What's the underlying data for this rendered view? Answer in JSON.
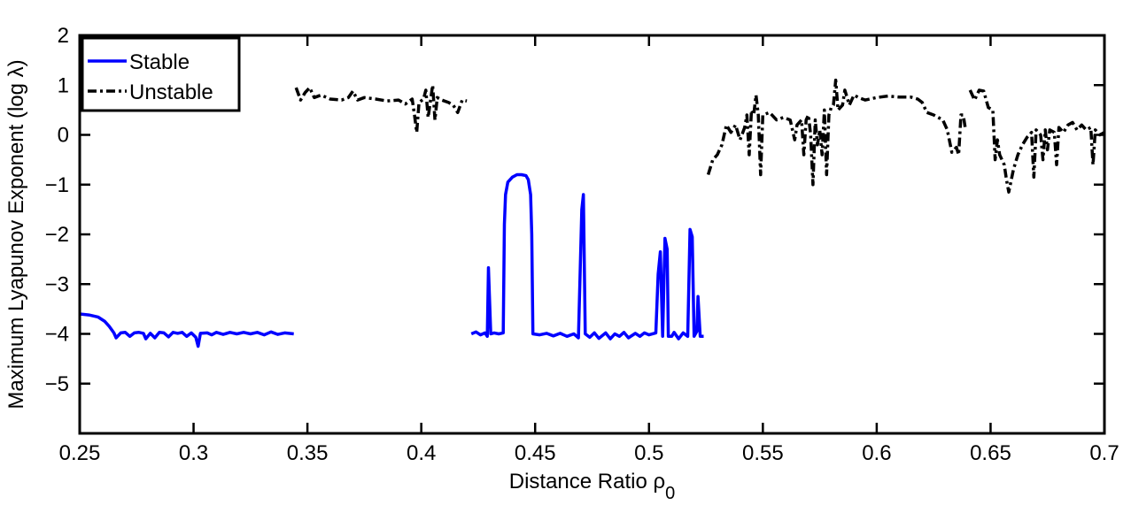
{
  "chart_data": {
    "type": "line",
    "xlabel": "Distance Ratio ρ",
    "xlabel_subscript": "0",
    "ylabel": "Maximum Lyapunov Exponent (log λ)",
    "xlim": [
      0.25,
      0.7
    ],
    "ylim": [
      -6,
      2
    ],
    "xticks": [
      0.25,
      0.3,
      0.35,
      0.4,
      0.45,
      0.5,
      0.55,
      0.6,
      0.65,
      0.7
    ],
    "xtick_labels": [
      "0.25",
      "0.3",
      "0.35",
      "0.4",
      "0.45",
      "0.5",
      "0.55",
      "0.6",
      "0.65",
      "0.7"
    ],
    "yticks": [
      -5,
      -4,
      -3,
      -2,
      -1,
      0,
      1,
      2
    ],
    "ytick_labels": [
      "−5",
      "−4",
      "−3",
      "−2",
      "−1",
      "0",
      "1",
      "2"
    ],
    "grid": false,
    "legend_position": "top-left",
    "series": [
      {
        "name": "Stable",
        "color": "#0000ff",
        "style": "solid",
        "segments": [
          [
            [
              0.25,
              -3.6
            ],
            [
              0.254,
              -3.62
            ],
            [
              0.258,
              -3.66
            ],
            [
              0.261,
              -3.75
            ],
            [
              0.263,
              -3.85
            ],
            [
              0.265,
              -3.98
            ],
            [
              0.266,
              -4.08
            ],
            [
              0.268,
              -3.98
            ],
            [
              0.27,
              -3.97
            ],
            [
              0.272,
              -4.05
            ],
            [
              0.274,
              -3.98
            ],
            [
              0.276,
              -3.97
            ],
            [
              0.278,
              -3.99
            ],
            [
              0.279,
              -4.1
            ],
            [
              0.281,
              -3.99
            ],
            [
              0.283,
              -4.08
            ],
            [
              0.285,
              -3.97
            ],
            [
              0.287,
              -3.98
            ],
            [
              0.289,
              -4.06
            ],
            [
              0.291,
              -3.97
            ],
            [
              0.293,
              -3.99
            ],
            [
              0.295,
              -3.97
            ],
            [
              0.297,
              -4.05
            ],
            [
              0.299,
              -3.98
            ],
            [
              0.301,
              -4.07
            ],
            [
              0.302,
              -4.25
            ],
            [
              0.303,
              -3.99
            ],
            [
              0.306,
              -3.98
            ],
            [
              0.308,
              -4.02
            ],
            [
              0.31,
              -3.97
            ],
            [
              0.313,
              -4.01
            ],
            [
              0.316,
              -3.97
            ],
            [
              0.319,
              -4.0
            ],
            [
              0.322,
              -3.97
            ],
            [
              0.325,
              -4.0
            ],
            [
              0.328,
              -3.97
            ],
            [
              0.331,
              -4.02
            ],
            [
              0.334,
              -3.96
            ],
            [
              0.337,
              -4.01
            ],
            [
              0.34,
              -3.98
            ],
            [
              0.344,
              -4.0
            ]
          ],
          [
            [
              0.422,
              -4.0
            ],
            [
              0.424,
              -3.96
            ],
            [
              0.426,
              -4.02
            ],
            [
              0.428,
              -3.98
            ],
            [
              0.429,
              -4.05
            ],
            [
              0.4295,
              -2.67
            ],
            [
              0.4305,
              -4.0
            ],
            [
              0.432,
              -3.98
            ],
            [
              0.434,
              -4.0
            ],
            [
              0.436,
              -3.98
            ],
            [
              0.4365,
              -1.8
            ],
            [
              0.437,
              -1.2
            ],
            [
              0.438,
              -0.95
            ],
            [
              0.44,
              -0.85
            ],
            [
              0.442,
              -0.8
            ],
            [
              0.444,
              -0.8
            ],
            [
              0.446,
              -0.82
            ],
            [
              0.447,
              -0.9
            ],
            [
              0.448,
              -1.2
            ],
            [
              0.4485,
              -2.0
            ],
            [
              0.449,
              -4.0
            ],
            [
              0.452,
              -4.02
            ],
            [
              0.455,
              -3.99
            ],
            [
              0.458,
              -4.04
            ],
            [
              0.461,
              -3.99
            ],
            [
              0.464,
              -4.05
            ],
            [
              0.467,
              -4.0
            ],
            [
              0.469,
              -4.08
            ],
            [
              0.4705,
              -1.5
            ],
            [
              0.4712,
              -1.2
            ],
            [
              0.472,
              -4.0
            ],
            [
              0.474,
              -4.07
            ],
            [
              0.476,
              -3.98
            ],
            [
              0.478,
              -4.09
            ],
            [
              0.481,
              -3.98
            ],
            [
              0.483,
              -4.1
            ],
            [
              0.485,
              -4.0
            ],
            [
              0.487,
              -4.05
            ],
            [
              0.489,
              -3.97
            ],
            [
              0.491,
              -4.08
            ],
            [
              0.494,
              -3.99
            ],
            [
              0.496,
              -4.05
            ],
            [
              0.498,
              -3.98
            ],
            [
              0.5,
              -4.02
            ],
            [
              0.503,
              -3.98
            ],
            [
              0.504,
              -2.8
            ],
            [
              0.505,
              -2.35
            ],
            [
              0.506,
              -4.05
            ],
            [
              0.507,
              -2.08
            ],
            [
              0.508,
              -2.3
            ],
            [
              0.5085,
              -4.05
            ],
            [
              0.51,
              -4.05
            ],
            [
              0.511,
              -3.97
            ],
            [
              0.513,
              -4.1
            ],
            [
              0.515,
              -3.98
            ],
            [
              0.517,
              -4.05
            ],
            [
              0.518,
              -1.9
            ],
            [
              0.519,
              -2.05
            ],
            [
              0.5198,
              -4.05
            ],
            [
              0.521,
              -3.95
            ],
            [
              0.5215,
              -3.25
            ],
            [
              0.5225,
              -4.05
            ],
            [
              0.524,
              -4.05
            ]
          ]
        ]
      },
      {
        "name": "Unstable",
        "color": "#000000",
        "style": "dashdot",
        "segments": [
          [
            [
              0.345,
              0.95
            ],
            [
              0.347,
              0.7
            ],
            [
              0.349,
              0.85
            ],
            [
              0.351,
              0.95
            ],
            [
              0.353,
              0.75
            ],
            [
              0.356,
              0.8
            ],
            [
              0.36,
              0.72
            ],
            [
              0.365,
              0.7
            ],
            [
              0.368,
              0.75
            ],
            [
              0.37,
              0.88
            ],
            [
              0.372,
              0.7
            ],
            [
              0.375,
              0.75
            ],
            [
              0.38,
              0.72
            ],
            [
              0.385,
              0.68
            ],
            [
              0.39,
              0.7
            ],
            [
              0.393,
              0.62
            ],
            [
              0.396,
              0.72
            ],
            [
              0.397,
              0.4
            ],
            [
              0.398,
              0.05
            ],
            [
              0.399,
              0.65
            ],
            [
              0.401,
              0.72
            ],
            [
              0.402,
              0.9
            ],
            [
              0.403,
              0.35
            ],
            [
              0.405,
              1.0
            ],
            [
              0.406,
              0.3
            ],
            [
              0.407,
              0.75
            ],
            [
              0.409,
              0.7
            ],
            [
              0.412,
              0.65
            ],
            [
              0.414,
              0.6
            ],
            [
              0.416,
              0.45
            ],
            [
              0.418,
              0.7
            ],
            [
              0.42,
              0.68
            ]
          ],
          [
            [
              0.526,
              -0.8
            ],
            [
              0.528,
              -0.5
            ],
            [
              0.53,
              -0.4
            ],
            [
              0.532,
              -0.2
            ],
            [
              0.534,
              0.2
            ],
            [
              0.536,
              0.05
            ],
            [
              0.538,
              0.2
            ],
            [
              0.54,
              -0.1
            ],
            [
              0.542,
              0.15
            ],
            [
              0.543,
              0.4
            ],
            [
              0.544,
              -0.4
            ],
            [
              0.545,
              0.5
            ],
            [
              0.546,
              0.4
            ],
            [
              0.547,
              0.8
            ],
            [
              0.548,
              0.4
            ],
            [
              0.549,
              -0.8
            ],
            [
              0.55,
              0.4
            ],
            [
              0.553,
              0.45
            ],
            [
              0.556,
              0.3
            ],
            [
              0.559,
              0.35
            ],
            [
              0.562,
              0.3
            ],
            [
              0.564,
              -0.1
            ],
            [
              0.565,
              0.2
            ],
            [
              0.567,
              0.3
            ],
            [
              0.568,
              -0.4
            ],
            [
              0.569,
              0.3
            ],
            [
              0.57,
              0.4
            ],
            [
              0.571,
              0.0
            ],
            [
              0.572,
              -1.0
            ],
            [
              0.573,
              0.3
            ],
            [
              0.574,
              -0.2
            ],
            [
              0.575,
              0.1
            ],
            [
              0.576,
              -0.4
            ],
            [
              0.577,
              0.5
            ],
            [
              0.578,
              -0.8
            ],
            [
              0.579,
              0.4
            ],
            [
              0.58,
              0.55
            ],
            [
              0.581,
              0.6
            ],
            [
              0.582,
              1.1
            ],
            [
              0.583,
              0.5
            ],
            [
              0.585,
              0.6
            ],
            [
              0.586,
              0.9
            ],
            [
              0.588,
              0.6
            ],
            [
              0.59,
              0.8
            ],
            [
              0.592,
              0.75
            ],
            [
              0.595,
              0.7
            ],
            [
              0.6,
              0.75
            ],
            [
              0.605,
              0.78
            ],
            [
              0.61,
              0.76
            ],
            [
              0.615,
              0.76
            ],
            [
              0.618,
              0.72
            ],
            [
              0.62,
              0.65
            ],
            [
              0.622,
              0.45
            ],
            [
              0.625,
              0.4
            ],
            [
              0.627,
              0.35
            ],
            [
              0.629,
              0.3
            ],
            [
              0.631,
              0.1
            ],
            [
              0.633,
              -0.35
            ],
            [
              0.635,
              -0.25
            ],
            [
              0.636,
              -0.4
            ],
            [
              0.637,
              0.4
            ],
            [
              0.638,
              0.4
            ],
            [
              0.639,
              0.1
            ]
          ],
          [
            [
              0.641,
              0.9
            ],
            [
              0.643,
              0.7
            ],
            [
              0.645,
              0.9
            ],
            [
              0.647,
              0.88
            ],
            [
              0.649,
              0.55
            ],
            [
              0.651,
              0.5
            ],
            [
              0.652,
              -0.5
            ],
            [
              0.653,
              -0.1
            ],
            [
              0.654,
              -0.4
            ],
            [
              0.656,
              -0.6
            ],
            [
              0.657,
              -0.9
            ],
            [
              0.658,
              -1.15
            ],
            [
              0.66,
              -0.7
            ],
            [
              0.662,
              -0.4
            ],
            [
              0.664,
              -0.2
            ],
            [
              0.666,
              -0.05
            ],
            [
              0.668,
              0.05
            ],
            [
              0.669,
              -0.85
            ],
            [
              0.67,
              0.1
            ],
            [
              0.672,
              0.0
            ],
            [
              0.673,
              -0.5
            ],
            [
              0.674,
              0.1
            ],
            [
              0.675,
              -0.3
            ],
            [
              0.676,
              0.1
            ],
            [
              0.678,
              0.05
            ],
            [
              0.679,
              -0.6
            ],
            [
              0.68,
              0.15
            ],
            [
              0.682,
              0.05
            ],
            [
              0.684,
              0.2
            ],
            [
              0.686,
              0.25
            ],
            [
              0.688,
              0.1
            ],
            [
              0.69,
              0.2
            ],
            [
              0.692,
              0.1
            ],
            [
              0.694,
              0.15
            ],
            [
              0.695,
              -0.6
            ],
            [
              0.696,
              0.1
            ],
            [
              0.698,
              0.0
            ],
            [
              0.7,
              0.05
            ]
          ]
        ]
      }
    ]
  }
}
